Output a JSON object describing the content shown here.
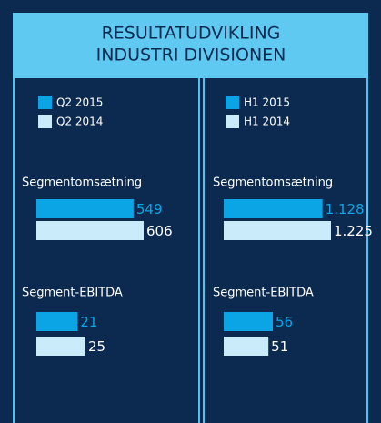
{
  "title": [
    "RESULTATUDVIKLING",
    "INDUSTRI DIVISIONEN"
  ],
  "panels": [
    {
      "legend": [
        {
          "name": "Q2 2015",
          "color": "#0ba5e5"
        },
        {
          "name": "Q2 2014",
          "color": "#c9ebfa"
        }
      ],
      "groups": [
        {
          "label": "Segmentomsætning",
          "values": [
            549,
            606
          ]
        },
        {
          "label": "Segment-EBITDA",
          "values": [
            21,
            25
          ]
        }
      ]
    },
    {
      "legend": [
        {
          "name": "H1 2015",
          "color": "#0ba5e5"
        },
        {
          "name": "H1 2014",
          "color": "#c9ebfa"
        }
      ],
      "groups": [
        {
          "label": "Segmentomsætning",
          "values": [
            1128,
            1225
          ],
          "value_labels": [
            "1.128",
            "1.225"
          ]
        },
        {
          "label": "Segment-EBITDA",
          "values": [
            56,
            51
          ]
        }
      ]
    }
  ]
}
